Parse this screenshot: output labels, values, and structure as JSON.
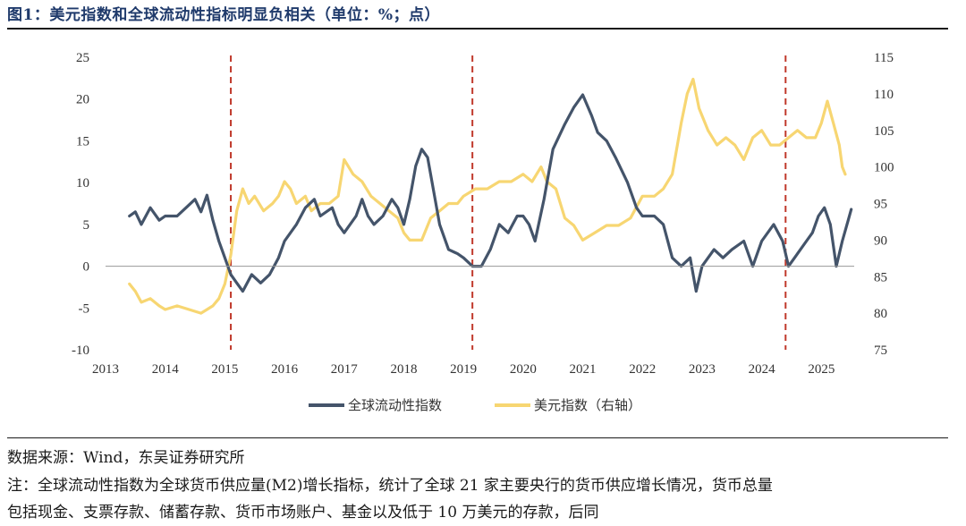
{
  "title": "图1：美元指数和全球流动性指标明显负相关（单位：%；点）",
  "source": "数据来源：Wind，东吴证券研究所",
  "note_line1": "注：全球流动性指数为全球货币供应量(M2)增长指标，统计了全球 21 家主要央行的货币供应增长情况，货币总量",
  "note_line2": "包括现金、支票存款、储蓄存款、货币市场账户、基金以及低于 10 万美元的存款，后同",
  "chart_data": {
    "type": "line",
    "x_ticks": [
      "2013",
      "2014",
      "2015",
      "2016",
      "2017",
      "2018",
      "2019",
      "2020",
      "2021",
      "2022",
      "2023",
      "2024",
      "2025"
    ],
    "xlim": [
      2013.0,
      2025.55
    ],
    "ylim_left": [
      -10,
      25
    ],
    "y_ticks_left": [
      "-10",
      "-5",
      "0",
      "5",
      "10",
      "15",
      "20",
      "25"
    ],
    "ylim_right": [
      75,
      115
    ],
    "y_ticks_right": [
      "75",
      "80",
      "85",
      "90",
      "95",
      "100",
      "105",
      "110",
      "115"
    ],
    "grid": false,
    "legend_position": "bottom-center",
    "vlines": [
      2015.1,
      2019.15,
      2024.4
    ],
    "vline_color": "#c0392b",
    "series": [
      {
        "name": "全球流动性指数",
        "axis": "left",
        "color": "#44546a",
        "x": [
          2013.4,
          2013.5,
          2013.6,
          2013.75,
          2013.9,
          2014.0,
          2014.2,
          2014.35,
          2014.5,
          2014.6,
          2014.7,
          2014.8,
          2014.9,
          2015.0,
          2015.1,
          2015.2,
          2015.3,
          2015.45,
          2015.6,
          2015.75,
          2015.9,
          2016.0,
          2016.2,
          2016.35,
          2016.5,
          2016.6,
          2016.8,
          2016.9,
          2017.0,
          2017.2,
          2017.3,
          2017.4,
          2017.5,
          2017.65,
          2017.8,
          2017.9,
          2018.0,
          2018.1,
          2018.2,
          2018.3,
          2018.4,
          2018.5,
          2018.6,
          2018.75,
          2018.9,
          2019.0,
          2019.15,
          2019.3,
          2019.45,
          2019.6,
          2019.75,
          2019.9,
          2020.0,
          2020.1,
          2020.2,
          2020.35,
          2020.5,
          2020.7,
          2020.85,
          2021.0,
          2021.15,
          2021.25,
          2021.4,
          2021.55,
          2021.75,
          2021.9,
          2022.0,
          2022.2,
          2022.35,
          2022.5,
          2022.65,
          2022.8,
          2022.9,
          2023.0,
          2023.2,
          2023.35,
          2023.5,
          2023.7,
          2023.85,
          2024.0,
          2024.2,
          2024.35,
          2024.45,
          2024.6,
          2024.75,
          2024.85,
          2024.95,
          2025.05,
          2025.15,
          2025.25,
          2025.35,
          2025.45
        ],
        "y": [
          6,
          6.5,
          5,
          7,
          5.5,
          6,
          6,
          7,
          8,
          6.5,
          8.5,
          5.5,
          3,
          1,
          -1,
          -2,
          -3,
          -1,
          -2,
          -1,
          1,
          3,
          5,
          7,
          8,
          6,
          7,
          5,
          4,
          6,
          8,
          6,
          5,
          6,
          8,
          7,
          5,
          8,
          12,
          14,
          13,
          9,
          5,
          2,
          1.5,
          1,
          0,
          0,
          2,
          5,
          4,
          6,
          6,
          5,
          3,
          8,
          14,
          17,
          19,
          20.5,
          18,
          16,
          15,
          13,
          10,
          7,
          6,
          6,
          5,
          1,
          0,
          1,
          -3,
          0,
          2,
          1,
          2,
          3,
          0,
          3,
          5,
          3,
          0,
          1.5,
          3,
          4,
          6,
          7,
          5,
          0,
          3,
          5.5
        ],
        "x_extra": [
          2025.5
        ],
        "y_extra": [
          6.8
        ]
      },
      {
        "name": "美元指数（右轴）",
        "axis": "right",
        "color": "#f7d672",
        "x": [
          2013.4,
          2013.5,
          2013.6,
          2013.75,
          2013.9,
          2014.0,
          2014.2,
          2014.4,
          2014.6,
          2014.7,
          2014.8,
          2014.9,
          2015.0,
          2015.1,
          2015.2,
          2015.3,
          2015.4,
          2015.5,
          2015.65,
          2015.8,
          2015.9,
          2016.0,
          2016.1,
          2016.2,
          2016.35,
          2016.45,
          2016.6,
          2016.75,
          2016.9,
          2017.0,
          2017.15,
          2017.3,
          2017.45,
          2017.6,
          2017.75,
          2017.9,
          2018.0,
          2018.1,
          2018.2,
          2018.3,
          2018.45,
          2018.6,
          2018.75,
          2018.9,
          2019.0,
          2019.2,
          2019.4,
          2019.6,
          2019.8,
          2020.0,
          2020.15,
          2020.3,
          2020.4,
          2020.55,
          2020.7,
          2020.85,
          2021.0,
          2021.2,
          2021.4,
          2021.6,
          2021.8,
          2022.0,
          2022.2,
          2022.35,
          2022.5,
          2022.65,
          2022.75,
          2022.85,
          2022.95,
          2023.1,
          2023.25,
          2023.4,
          2023.55,
          2023.7,
          2023.85,
          2024.0,
          2024.15,
          2024.3,
          2024.45,
          2024.6,
          2024.75,
          2024.9,
          2025.0,
          2025.1,
          2025.2,
          2025.3,
          2025.35,
          2025.4
        ],
        "y": [
          84,
          83,
          81.5,
          82,
          81,
          80.5,
          81,
          80.5,
          80,
          80.5,
          81,
          82,
          84,
          88,
          94,
          97,
          95,
          96,
          94,
          95,
          96,
          98,
          97,
          95,
          96,
          94,
          95,
          95,
          96,
          101,
          99,
          98,
          96,
          95,
          94,
          93,
          91,
          90,
          90,
          90,
          93,
          94,
          95,
          95,
          96,
          97,
          97,
          98,
          98,
          99,
          98,
          100,
          98,
          97,
          93,
          92,
          90,
          91,
          92,
          92,
          93,
          96,
          96,
          97,
          99,
          106,
          110,
          112,
          108,
          105,
          103,
          104,
          103,
          101,
          104,
          105,
          103,
          103,
          104,
          105,
          104,
          104,
          106,
          109,
          106,
          103,
          100,
          99
        ]
      }
    ]
  }
}
